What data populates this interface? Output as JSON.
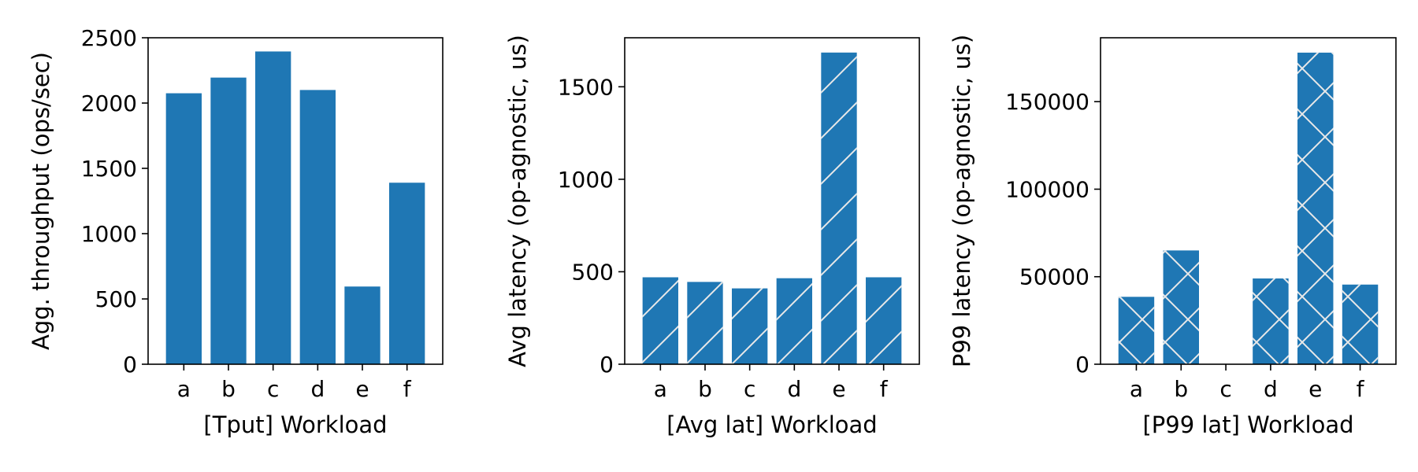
{
  "chart_data": [
    {
      "type": "bar",
      "categories": [
        "a",
        "b",
        "c",
        "d",
        "e",
        "f"
      ],
      "values": [
        2075,
        2195,
        2395,
        2100,
        595,
        1390
      ],
      "xlabel": "[Tput]  Workload",
      "ylabel": "Agg. throughput (ops/sec)",
      "ylim": [
        0,
        2500
      ],
      "yticks": [
        0,
        500,
        1000,
        1500,
        2000,
        2500
      ],
      "color": "#1f77b4",
      "hatch": "none",
      "grid": false
    },
    {
      "type": "bar",
      "categories": [
        "a",
        "b",
        "c",
        "d",
        "e",
        "f"
      ],
      "values": [
        470,
        445,
        410,
        465,
        1685,
        470
      ],
      "xlabel": "[Avg lat]  Workload",
      "ylabel": "Avg latency (op-agnostic, us)",
      "ylim": [
        0,
        1765
      ],
      "yticks": [
        0,
        500,
        1000,
        1500
      ],
      "color": "#1f77b4",
      "hatch": "diagonal",
      "grid": false
    },
    {
      "type": "bar",
      "categories": [
        "a",
        "b",
        "c",
        "d",
        "e",
        "f"
      ],
      "values": [
        38500,
        65000,
        0,
        49000,
        178000,
        45500
      ],
      "xlabel": "[P99 lat]  Workload",
      "ylabel": "P99 latency (op-agnostic, us)",
      "ylim": [
        0,
        186500
      ],
      "yticks": [
        0,
        50000,
        100000,
        150000
      ],
      "color": "#1f77b4",
      "hatch": "crosshatch",
      "grid": false
    }
  ]
}
